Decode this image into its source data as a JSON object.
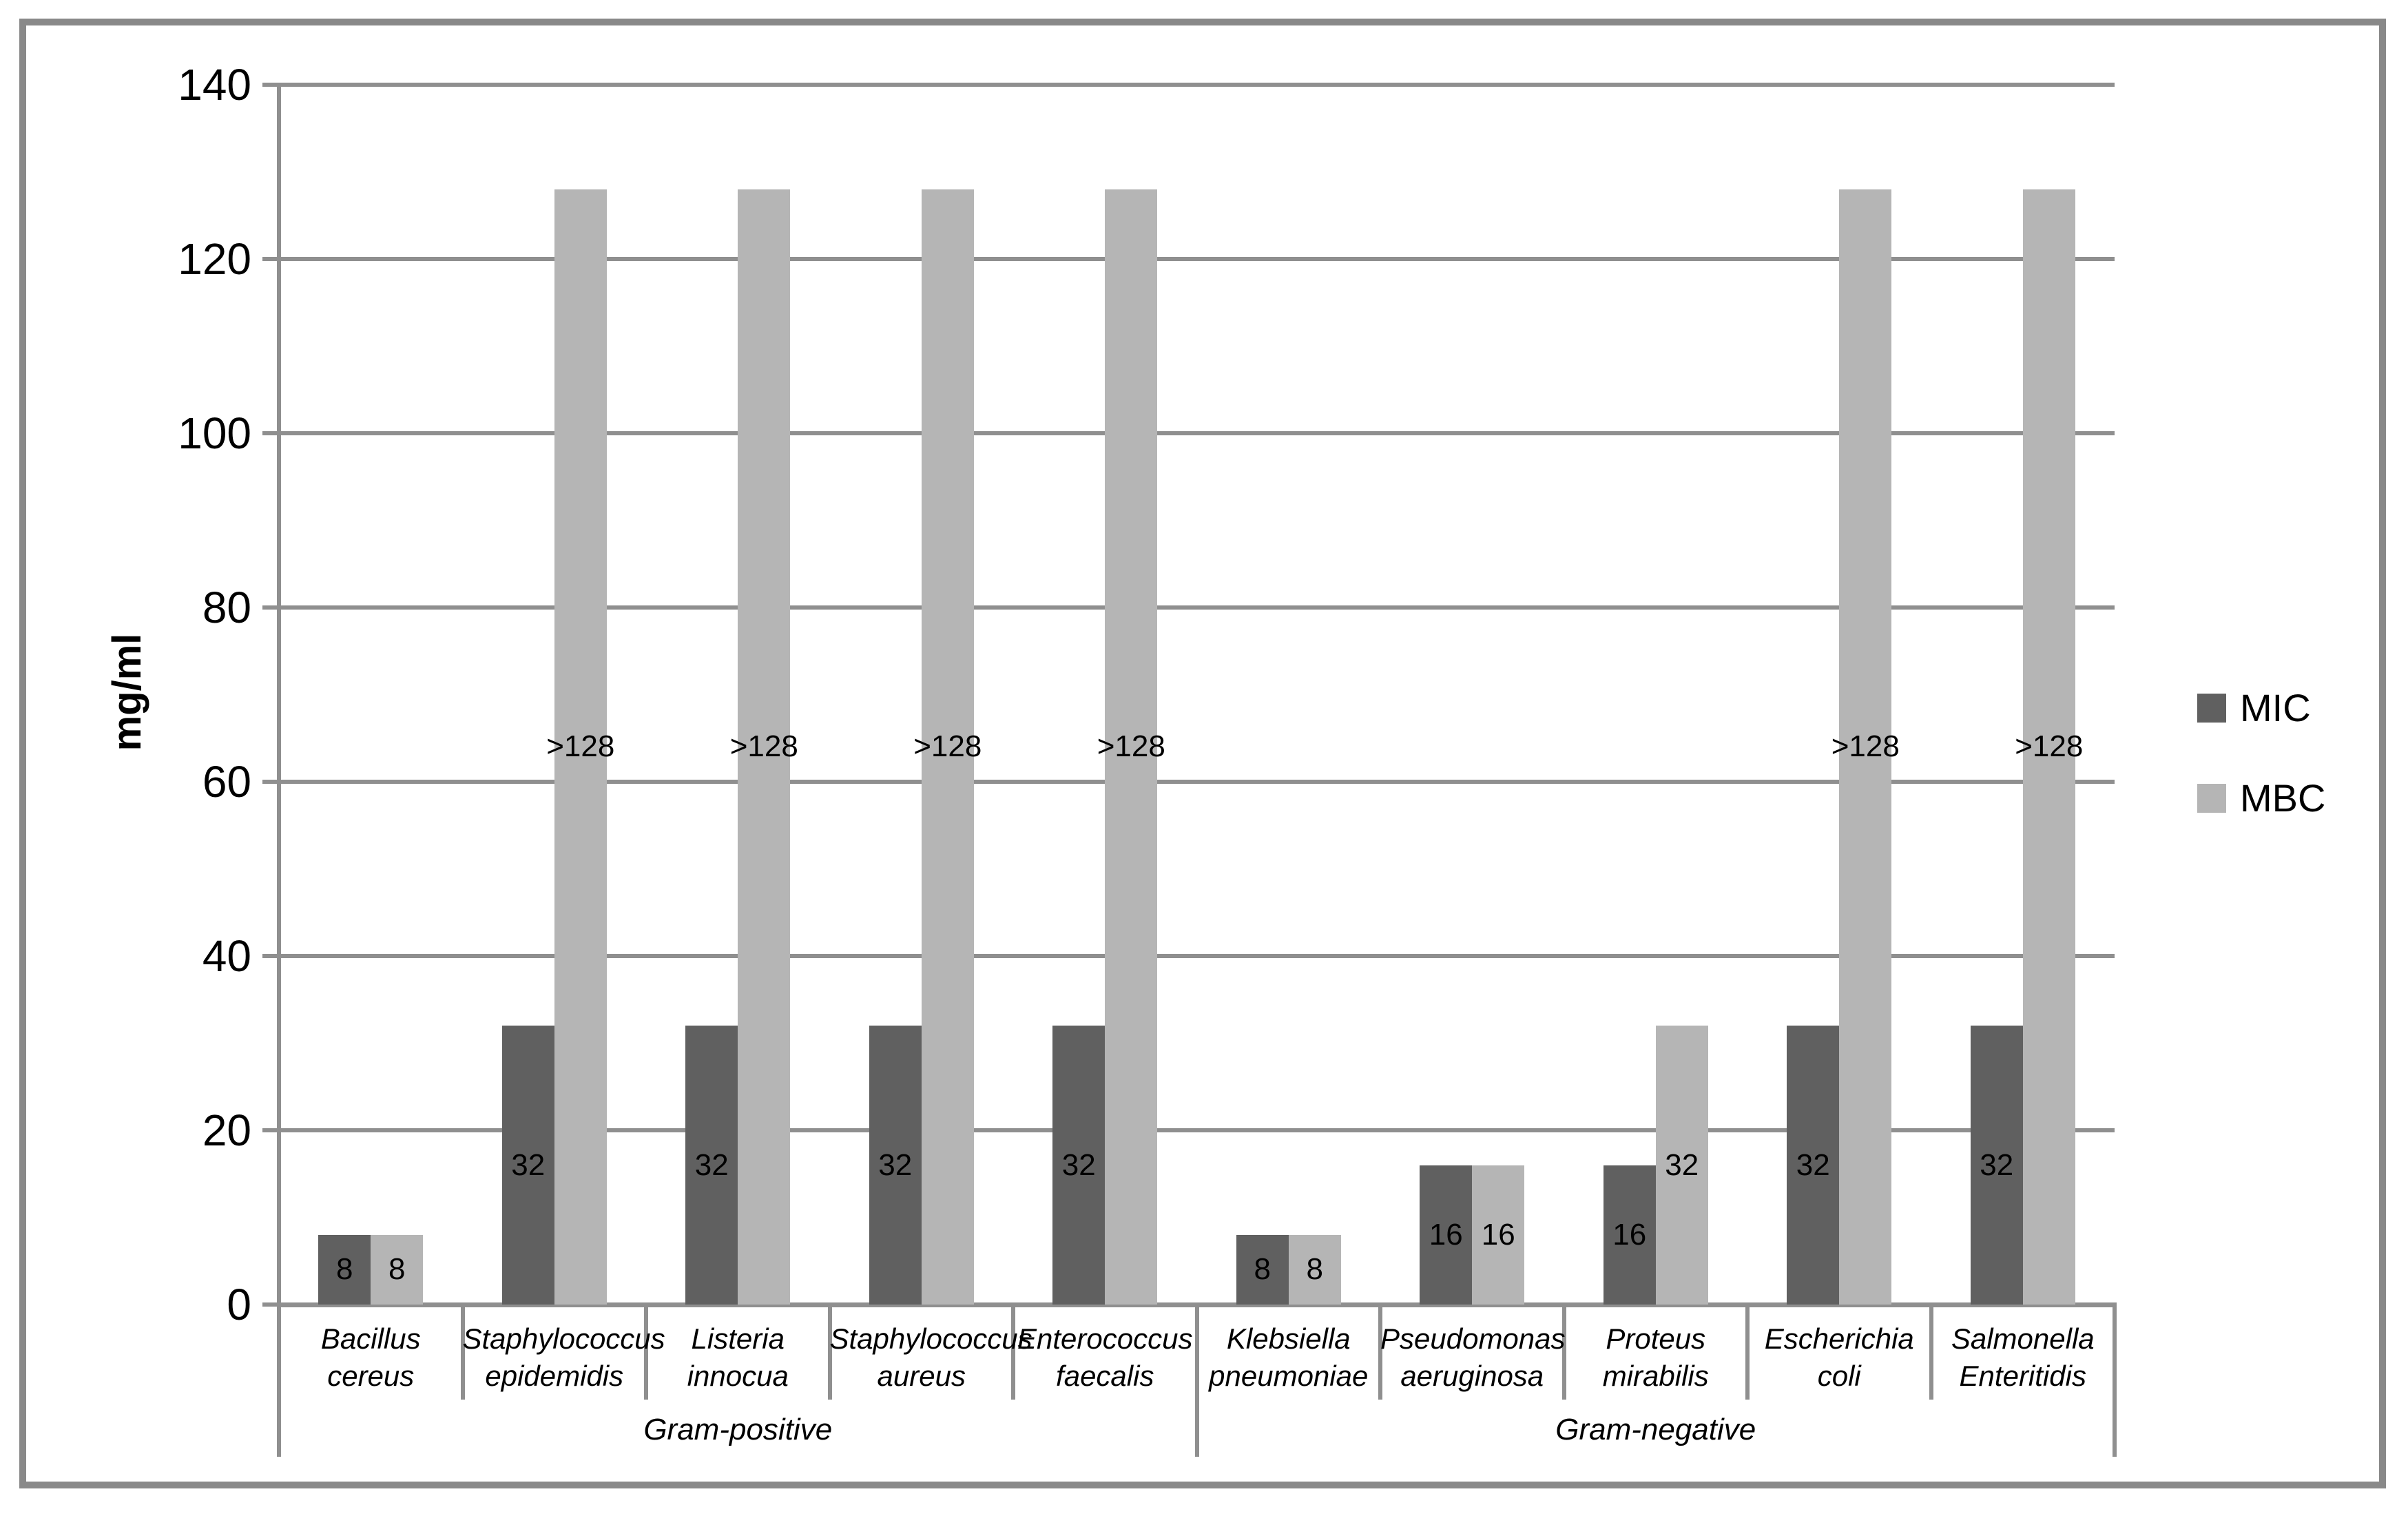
{
  "chart_data": {
    "type": "bar",
    "title": "",
    "xlabel": "",
    "ylabel": "mg/ml",
    "ylim": [
      0,
      140
    ],
    "yticks": [
      0,
      20,
      40,
      60,
      80,
      100,
      120,
      140
    ],
    "grid": true,
    "legend_position": "right",
    "legend": [
      "MIC",
      "MBC"
    ],
    "groups": [
      {
        "label": "Gram-positive",
        "categories": [
          [
            "Bacillus cereus"
          ],
          [
            "Staphylococcus",
            "epidemidis"
          ],
          [
            "Listeria innocua"
          ],
          [
            "Staphylococcus",
            "aureus"
          ],
          [
            "Enterococcus",
            "faecalis"
          ]
        ]
      },
      {
        "label": "Gram-negative",
        "categories": [
          [
            "Klebsiella",
            "pneumoniae"
          ],
          [
            "Pseudomonas",
            "aeruginosa"
          ],
          [
            "Proteus",
            "mirabilis"
          ],
          [
            "Escherichia coli"
          ],
          [
            "Salmonella",
            "Enteritidis"
          ]
        ]
      }
    ],
    "series": [
      {
        "name": "MIC",
        "color": "#606060",
        "values": [
          8,
          32,
          32,
          32,
          32,
          8,
          16,
          16,
          32,
          32
        ],
        "labels": [
          "8",
          "32",
          "32",
          "32",
          "32",
          "8",
          "16",
          "16",
          "32",
          "32"
        ]
      },
      {
        "name": "MBC",
        "color": "#b5b5b5",
        "values": [
          8,
          128,
          128,
          128,
          128,
          8,
          16,
          32,
          128,
          128
        ],
        "labels": [
          "8",
          ">128",
          ">128",
          ">128",
          ">128",
          "8",
          "16",
          "32",
          ">128",
          ">128"
        ]
      }
    ],
    "colors": {
      "mic_bar": "#606060",
      "mbc_bar": "#b5b5b5",
      "axis_gray": "#8f8f8f",
      "frame_gray": "#898989",
      "text": "#000000"
    }
  }
}
